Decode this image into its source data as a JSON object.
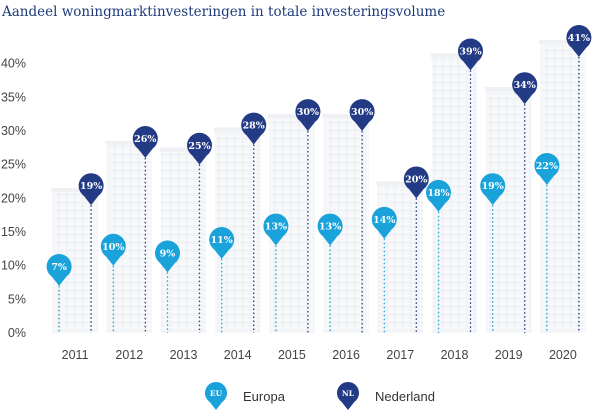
{
  "chart_data": {
    "type": "line",
    "title": "Aandeel woningmarktinvesteringen in totale investeringsvolume",
    "categories": [
      "2011",
      "2012",
      "2013",
      "2014",
      "2015",
      "2016",
      "2017",
      "2018",
      "2019",
      "2020"
    ],
    "ylim": [
      0,
      45
    ],
    "yticks": [
      0,
      5,
      10,
      15,
      20,
      25,
      30,
      35,
      40
    ],
    "ytick_labels": [
      "0%",
      "5%",
      "10%",
      "15%",
      "20%",
      "25%",
      "30%",
      "35%",
      "40%"
    ],
    "xlabel": "",
    "ylabel": "",
    "legend_position": "bottom",
    "series": [
      {
        "name": "Europa",
        "abbr": "EU",
        "color": "#1aa3db",
        "values": [
          7,
          10,
          9,
          11,
          13,
          13,
          14,
          18,
          19,
          22
        ],
        "labels": [
          "7%",
          "10%",
          "9%",
          "11%",
          "13%",
          "13%",
          "14%",
          "18%",
          "19%",
          "22%"
        ]
      },
      {
        "name": "Nederland",
        "abbr": "NL",
        "color": "#233a85",
        "values": [
          19,
          26,
          25,
          28,
          30,
          30,
          20,
          39,
          34,
          41
        ],
        "labels": [
          "19%",
          "26%",
          "25%",
          "28%",
          "30%",
          "30%",
          "20%",
          "39%",
          "34%",
          "41%"
        ]
      }
    ]
  }
}
